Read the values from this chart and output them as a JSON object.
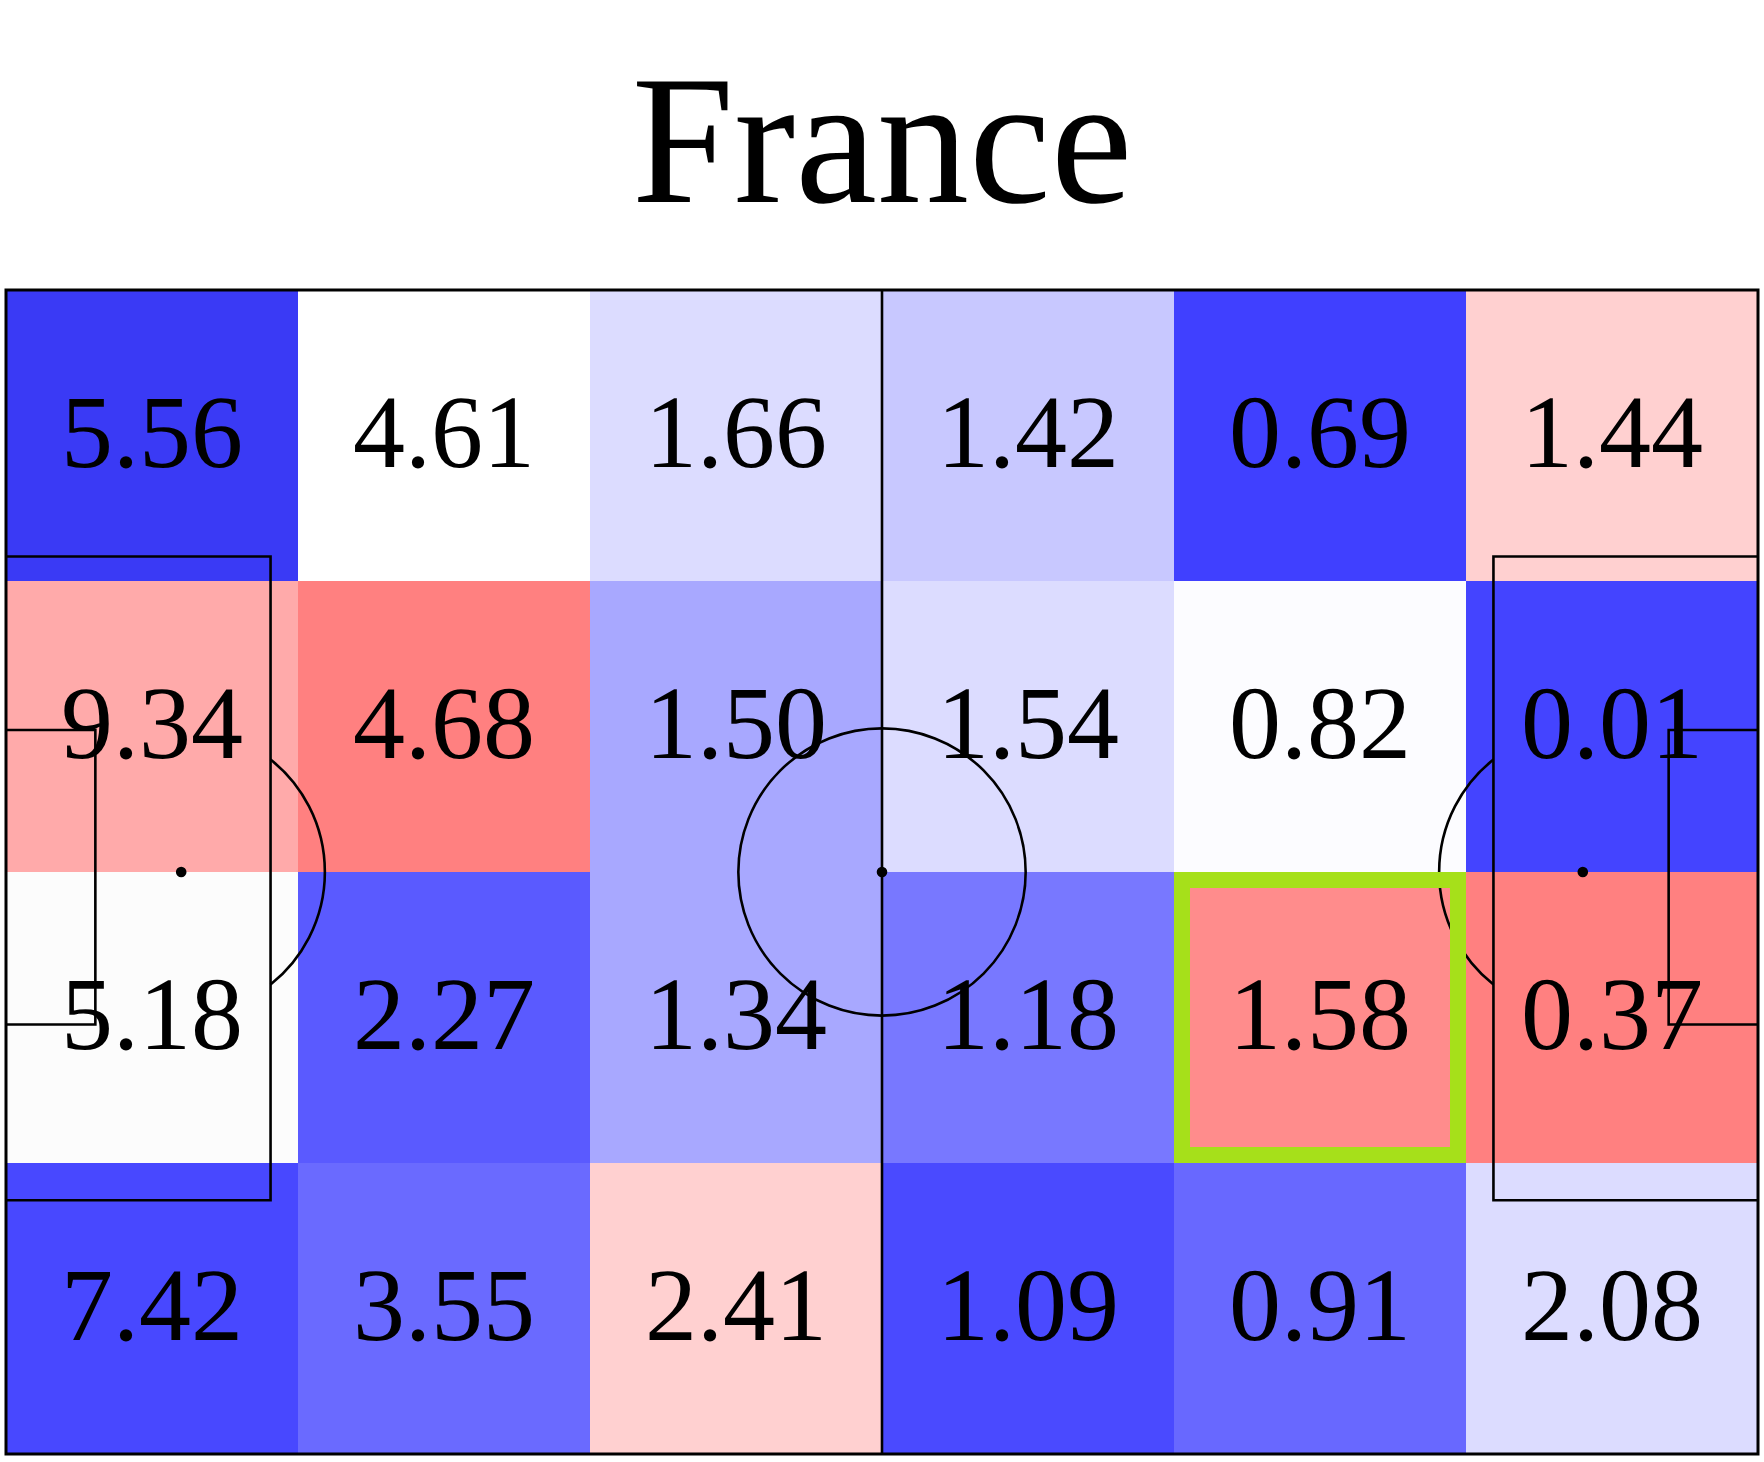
{
  "chart_data": {
    "type": "heatmap",
    "title": "France",
    "categories": [
      null,
      null,
      null,
      null,
      null,
      null
    ],
    "y_categories": [
      null,
      null,
      null,
      null
    ],
    "cells": [
      [
        5.56,
        4.61,
        1.66,
        1.42,
        0.69,
        1.44
      ],
      [
        9.34,
        4.68,
        1.5,
        1.54,
        0.82,
        0.01
      ],
      [
        5.18,
        2.27,
        1.34,
        1.18,
        1.58,
        0.37
      ],
      [
        7.42,
        3.55,
        2.41,
        1.09,
        0.91,
        2.08
      ]
    ],
    "colors": [
      [
        "#3a3af5",
        "#ffffff",
        "#dcdcff",
        "#c8c8ff",
        "#4040ff",
        "#ffd0d0"
      ],
      [
        "#ffaaaa",
        "#ff8080",
        "#a8a8ff",
        "#dcdcff",
        "#fcfcff",
        "#4444ff"
      ],
      [
        "#fcfcfc",
        "#5a5aff",
        "#a8a8ff",
        "#7878ff",
        "#ff8c8c",
        "#ff8080"
      ],
      [
        "#4848ff",
        "#6a6aff",
        "#ffd0d0",
        "#4a4aff",
        "#6868ff",
        "#dcdcff"
      ]
    ],
    "cell_labels": [
      [
        "5.56",
        "4.61",
        "1.66",
        "1.42",
        "0.69",
        "1.44"
      ],
      [
        "9.34",
        "4.68",
        "1.50",
        "1.54",
        "0.82",
        "0.01"
      ],
      [
        "5.18",
        "2.27",
        "1.34",
        "1.18",
        "1.58",
        "0.37"
      ],
      [
        "7.42",
        "3.55",
        "2.41",
        "1.09",
        "0.91",
        "2.08"
      ]
    ],
    "data_labels": true
  }
}
